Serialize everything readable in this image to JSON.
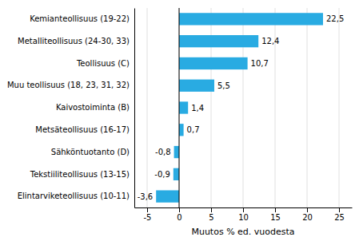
{
  "chart_data": {
    "type": "bar",
    "orientation": "horizontal",
    "categories": [
      "Elintarviketeollisuus (10-11)",
      "Tekstiiliteollisuus (13-15)",
      "Sähköntuotanto (D)",
      "Metsäteollisuus (16-17)",
      "Kaivostoiminta (B)",
      "Muu teollisuus (18, 23, 31, 32)",
      "Teollisuus (C)",
      "Metalliteollisuus (24-30, 33)",
      "Kemianteollisuus (19-22)"
    ],
    "values": [
      -3.6,
      -0.9,
      -0.8,
      0.7,
      1.4,
      5.5,
      10.7,
      12.4,
      22.5
    ],
    "value_labels": [
      "-3,6",
      "-0,9",
      "-0,8",
      "0,7",
      "1,4",
      "5,5",
      "10,7",
      "12,4",
      "22,5"
    ],
    "color": "#29abe2",
    "xlabel": "Muutos % ed. vuodesta",
    "xlim": [
      -7,
      27
    ],
    "xticks": [
      -5,
      0,
      5,
      10,
      15,
      20,
      25
    ],
    "grid": true,
    "data_labels": true
  }
}
